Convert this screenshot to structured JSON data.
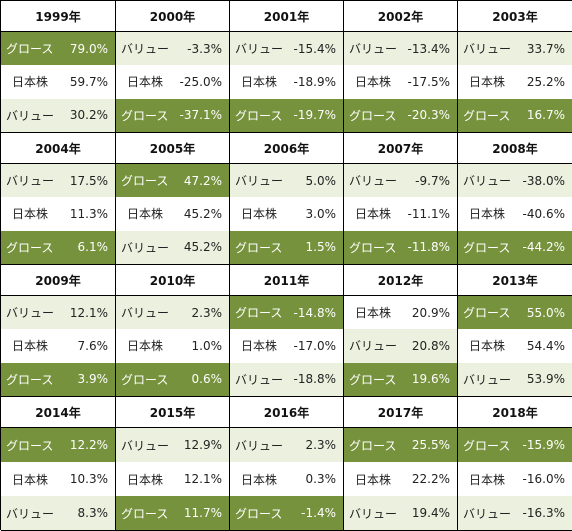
{
  "chart_data": {
    "type": "table",
    "years": [
      {
        "year": "1999年",
        "rows": [
          {
            "label": "グロース",
            "value": "79.0%",
            "tone": "green"
          },
          {
            "label": "日本株",
            "value": "59.7%",
            "tone": "white"
          },
          {
            "label": "バリュー",
            "value": "30.2%",
            "tone": "light"
          }
        ]
      },
      {
        "year": "2000年",
        "rows": [
          {
            "label": "バリュー",
            "value": "-3.3%",
            "tone": "light"
          },
          {
            "label": "日本株",
            "value": "-25.0%",
            "tone": "white"
          },
          {
            "label": "グロース",
            "value": "-37.1%",
            "tone": "green"
          }
        ]
      },
      {
        "year": "2001年",
        "rows": [
          {
            "label": "バリュー",
            "value": "-15.4%",
            "tone": "light"
          },
          {
            "label": "日本株",
            "value": "-18.9%",
            "tone": "white"
          },
          {
            "label": "グロース",
            "value": "-19.7%",
            "tone": "green"
          }
        ]
      },
      {
        "year": "2002年",
        "rows": [
          {
            "label": "バリュー",
            "value": "-13.4%",
            "tone": "light"
          },
          {
            "label": "日本株",
            "value": "-17.5%",
            "tone": "white"
          },
          {
            "label": "グロース",
            "value": "-20.3%",
            "tone": "green"
          }
        ]
      },
      {
        "year": "2003年",
        "rows": [
          {
            "label": "バリュー",
            "value": "33.7%",
            "tone": "light"
          },
          {
            "label": "日本株",
            "value": "25.2%",
            "tone": "white"
          },
          {
            "label": "グロース",
            "value": "16.7%",
            "tone": "green"
          }
        ]
      },
      {
        "year": "2004年",
        "rows": [
          {
            "label": "バリュー",
            "value": "17.5%",
            "tone": "light"
          },
          {
            "label": "日本株",
            "value": "11.3%",
            "tone": "white"
          },
          {
            "label": "グロース",
            "value": "6.1%",
            "tone": "green"
          }
        ]
      },
      {
        "year": "2005年",
        "rows": [
          {
            "label": "グロース",
            "value": "47.2%",
            "tone": "green"
          },
          {
            "label": "日本株",
            "value": "45.2%",
            "tone": "white"
          },
          {
            "label": "バリュー",
            "value": "45.2%",
            "tone": "light"
          }
        ]
      },
      {
        "year": "2006年",
        "rows": [
          {
            "label": "バリュー",
            "value": "5.0%",
            "tone": "light"
          },
          {
            "label": "日本株",
            "value": "3.0%",
            "tone": "white"
          },
          {
            "label": "グロース",
            "value": "1.5%",
            "tone": "green"
          }
        ]
      },
      {
        "year": "2007年",
        "rows": [
          {
            "label": "バリュー",
            "value": "-9.7%",
            "tone": "light"
          },
          {
            "label": "日本株",
            "value": "-11.1%",
            "tone": "white"
          },
          {
            "label": "グロース",
            "value": "-11.8%",
            "tone": "green"
          }
        ]
      },
      {
        "year": "2008年",
        "rows": [
          {
            "label": "バリュー",
            "value": "-38.0%",
            "tone": "light"
          },
          {
            "label": "日本株",
            "value": "-40.6%",
            "tone": "white"
          },
          {
            "label": "グロース",
            "value": "-44.2%",
            "tone": "green"
          }
        ]
      },
      {
        "year": "2009年",
        "rows": [
          {
            "label": "バリュー",
            "value": "12.1%",
            "tone": "light"
          },
          {
            "label": "日本株",
            "value": "7.6%",
            "tone": "white"
          },
          {
            "label": "グロース",
            "value": "3.9%",
            "tone": "green"
          }
        ]
      },
      {
        "year": "2010年",
        "rows": [
          {
            "label": "バリュー",
            "value": "2.3%",
            "tone": "light"
          },
          {
            "label": "日本株",
            "value": "1.0%",
            "tone": "white"
          },
          {
            "label": "グロース",
            "value": "0.6%",
            "tone": "green"
          }
        ]
      },
      {
        "year": "2011年",
        "rows": [
          {
            "label": "グロース",
            "value": "-14.8%",
            "tone": "green"
          },
          {
            "label": "日本株",
            "value": "-17.0%",
            "tone": "white"
          },
          {
            "label": "バリュー",
            "value": "-18.8%",
            "tone": "light"
          }
        ]
      },
      {
        "year": "2012年",
        "rows": [
          {
            "label": "日本株",
            "value": "20.9%",
            "tone": "white"
          },
          {
            "label": "バリュー",
            "value": "20.8%",
            "tone": "light"
          },
          {
            "label": "グロース",
            "value": "19.6%",
            "tone": "green"
          }
        ]
      },
      {
        "year": "2013年",
        "rows": [
          {
            "label": "グロース",
            "value": "55.0%",
            "tone": "green"
          },
          {
            "label": "日本株",
            "value": "54.4%",
            "tone": "white"
          },
          {
            "label": "バリュー",
            "value": "53.9%",
            "tone": "light"
          }
        ]
      },
      {
        "year": "2014年",
        "rows": [
          {
            "label": "グロース",
            "value": "12.2%",
            "tone": "green"
          },
          {
            "label": "日本株",
            "value": "10.3%",
            "tone": "white"
          },
          {
            "label": "バリュー",
            "value": "8.3%",
            "tone": "light"
          }
        ]
      },
      {
        "year": "2015年",
        "rows": [
          {
            "label": "バリュー",
            "value": "12.9%",
            "tone": "light"
          },
          {
            "label": "日本株",
            "value": "12.1%",
            "tone": "white"
          },
          {
            "label": "グロース",
            "value": "11.7%",
            "tone": "green"
          }
        ]
      },
      {
        "year": "2016年",
        "rows": [
          {
            "label": "バリュー",
            "value": "2.3%",
            "tone": "light"
          },
          {
            "label": "日本株",
            "value": "0.3%",
            "tone": "white"
          },
          {
            "label": "グロース",
            "value": "-1.4%",
            "tone": "green"
          }
        ]
      },
      {
        "year": "2017年",
        "rows": [
          {
            "label": "グロース",
            "value": "25.5%",
            "tone": "green"
          },
          {
            "label": "日本株",
            "value": "22.2%",
            "tone": "white"
          },
          {
            "label": "バリュー",
            "value": "19.4%",
            "tone": "light"
          }
        ]
      },
      {
        "year": "2018年",
        "rows": [
          {
            "label": "グロース",
            "value": "-15.9%",
            "tone": "green"
          },
          {
            "label": "日本株",
            "value": "-16.0%",
            "tone": "white"
          },
          {
            "label": "バリュー",
            "value": "-16.3%",
            "tone": "light"
          }
        ]
      }
    ]
  },
  "colors": {
    "growth": "#76923c",
    "value": "#ebf1de",
    "japan_stock": "#ffffff",
    "border": "#000000"
  }
}
